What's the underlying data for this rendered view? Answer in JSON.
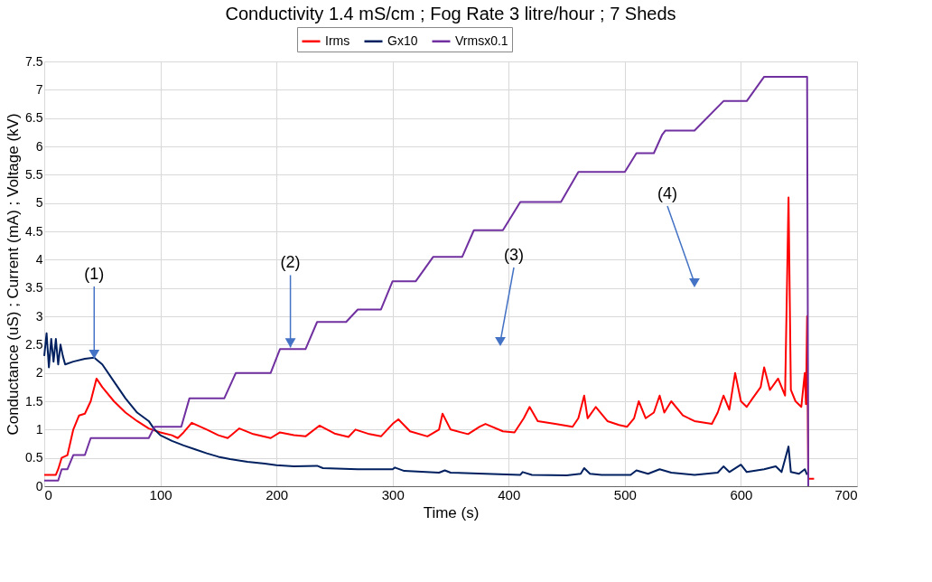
{
  "chart_data": {
    "type": "line",
    "title": "Conductivity 1.4 mS/cm ; Fog Rate 3 litre/hour ; 7 Sheds",
    "xlabel": "Time (s)",
    "ylabel": "Conductance (uS) ; Current (mA) ; Voltage (kV)",
    "xlim": [
      0,
      700
    ],
    "xticks": [
      0,
      100,
      200,
      300,
      400,
      500,
      600,
      700
    ],
    "ylim": [
      0,
      7.5
    ],
    "yticks": [
      0,
      0.5,
      1,
      1.5,
      2,
      2.5,
      3,
      3.5,
      4,
      4.5,
      5,
      5.5,
      6,
      6.5,
      7,
      7.5
    ],
    "grid": true,
    "legend": "top",
    "marker": "none",
    "line_style": "solid",
    "series": [
      {
        "name": "Irms",
        "color": "#ff0000",
        "x": [
          0,
          10,
          12,
          15,
          20,
          25,
          30,
          35,
          40,
          45,
          50,
          60,
          70,
          80,
          90,
          100,
          110,
          115,
          120,
          127,
          140,
          150,
          158,
          168,
          180,
          195,
          203,
          215,
          225,
          237,
          250,
          262,
          268,
          280,
          290,
          300,
          305,
          315,
          330,
          340,
          343,
          350,
          365,
          375,
          380,
          395,
          405,
          413,
          418,
          425,
          440,
          455,
          460,
          465,
          468,
          475,
          485,
          495,
          502,
          508,
          512,
          518,
          525,
          530,
          534,
          540,
          550,
          560,
          575,
          580,
          585,
          590,
          595,
          600,
          605,
          610,
          617,
          620,
          625,
          632,
          638,
          641,
          643,
          647,
          652,
          655,
          656,
          657,
          658,
          663
        ],
        "values": [
          0.2,
          0.2,
          0.3,
          0.5,
          0.55,
          1.0,
          1.25,
          1.28,
          1.5,
          1.9,
          1.75,
          1.5,
          1.3,
          1.15,
          1.02,
          0.95,
          0.9,
          0.85,
          0.95,
          1.12,
          1.0,
          0.9,
          0.85,
          1.02,
          0.92,
          0.85,
          0.95,
          0.9,
          0.88,
          1.07,
          0.93,
          0.87,
          1.0,
          0.92,
          0.88,
          1.1,
          1.18,
          0.97,
          0.88,
          1.0,
          1.28,
          1.0,
          0.92,
          1.05,
          1.1,
          0.97,
          0.95,
          1.2,
          1.4,
          1.15,
          1.1,
          1.05,
          1.2,
          1.6,
          1.2,
          1.4,
          1.15,
          1.08,
          1.05,
          1.2,
          1.5,
          1.2,
          1.3,
          1.6,
          1.3,
          1.5,
          1.25,
          1.15,
          1.1,
          1.3,
          1.6,
          1.35,
          2.0,
          1.5,
          1.4,
          1.55,
          1.75,
          2.1,
          1.7,
          1.9,
          1.6,
          5.1,
          1.7,
          1.5,
          1.4,
          2.0,
          1.45,
          3.0,
          0.13,
          0.13
        ]
      },
      {
        "name": "Gx10",
        "color": "#002060",
        "x": [
          0,
          2,
          4,
          6,
          8,
          10,
          12,
          14,
          16,
          18,
          25,
          35,
          43,
          50,
          60,
          70,
          80,
          90,
          95,
          100,
          110,
          120,
          130,
          140,
          150,
          160,
          175,
          190,
          200,
          215,
          235,
          240,
          270,
          300,
          302,
          310,
          340,
          345,
          350,
          380,
          410,
          412,
          420,
          450,
          462,
          465,
          470,
          480,
          505,
          510,
          520,
          530,
          540,
          560,
          580,
          585,
          590,
          600,
          605,
          620,
          630,
          635,
          641,
          643,
          650,
          655,
          657
        ],
        "values": [
          2.3,
          2.7,
          2.1,
          2.6,
          2.2,
          2.6,
          2.15,
          2.5,
          2.3,
          2.15,
          2.2,
          2.25,
          2.27,
          2.15,
          1.85,
          1.55,
          1.3,
          1.15,
          1.0,
          0.9,
          0.8,
          0.72,
          0.65,
          0.58,
          0.52,
          0.48,
          0.43,
          0.4,
          0.37,
          0.35,
          0.36,
          0.32,
          0.3,
          0.3,
          0.33,
          0.27,
          0.24,
          0.28,
          0.24,
          0.22,
          0.2,
          0.25,
          0.2,
          0.19,
          0.22,
          0.32,
          0.22,
          0.2,
          0.2,
          0.28,
          0.22,
          0.3,
          0.24,
          0.2,
          0.24,
          0.35,
          0.25,
          0.38,
          0.25,
          0.3,
          0.35,
          0.25,
          0.7,
          0.25,
          0.22,
          0.3,
          0.2
        ]
      },
      {
        "name": "Vrmsx0.1",
        "color": "#7030a0",
        "x": [
          0,
          12,
          15,
          20,
          25,
          35,
          40,
          90,
          95,
          118,
          125,
          155,
          165,
          195,
          203,
          225,
          235,
          260,
          270,
          290,
          300,
          320,
          335,
          360,
          370,
          395,
          410,
          445,
          460,
          500,
          510,
          525,
          532,
          535,
          560,
          585,
          605,
          620,
          657,
          658
        ],
        "values": [
          0.1,
          0.1,
          0.3,
          0.3,
          0.55,
          0.55,
          0.85,
          0.85,
          1.05,
          1.05,
          1.55,
          1.55,
          2.0,
          2.0,
          2.42,
          2.42,
          2.9,
          2.9,
          3.12,
          3.12,
          3.62,
          3.62,
          4.05,
          4.05,
          4.52,
          4.52,
          5.02,
          5.02,
          5.55,
          5.55,
          5.88,
          5.88,
          6.2,
          6.28,
          6.28,
          6.8,
          6.8,
          7.23,
          7.23,
          0
        ]
      }
    ],
    "annotations": [
      {
        "text": "(1)",
        "x": 43,
        "y": 2.25
      },
      {
        "text": "(2)",
        "x": 212,
        "y": 2.45
      },
      "(3)",
      "(4)"
    ]
  }
}
